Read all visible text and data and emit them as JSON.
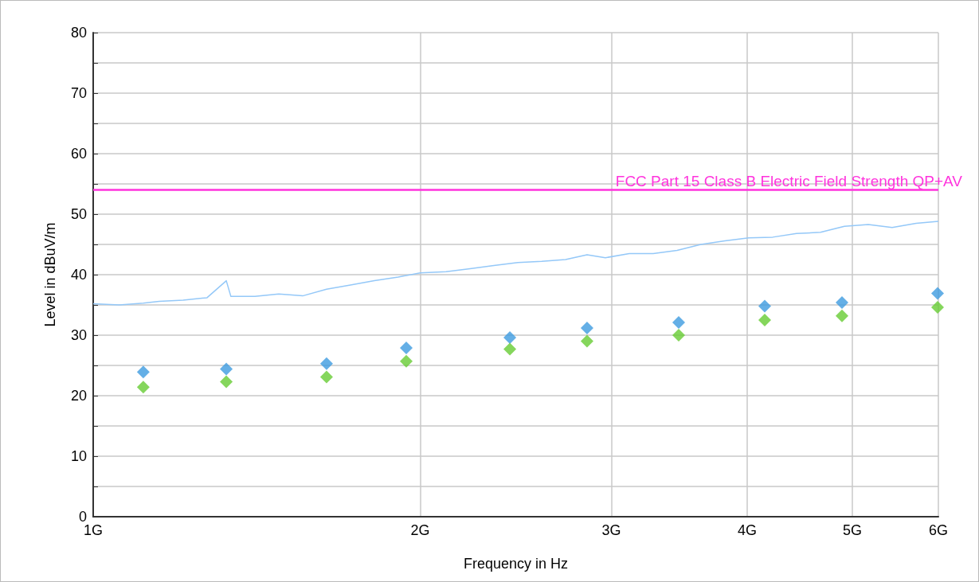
{
  "chart_data": {
    "type": "line",
    "xlabel": "Frequency in Hz",
    "ylabel": "Level in dBuV/m",
    "log": "x",
    "grid": true,
    "legend": false,
    "xlim": [
      1,
      6
    ],
    "xticks": [
      {
        "value": 1,
        "label": "1G"
      },
      {
        "value": 2,
        "label": "2G"
      },
      {
        "value": 3,
        "label": "3G"
      },
      {
        "value": 4,
        "label": "4G"
      },
      {
        "value": 5,
        "label": "5G"
      },
      {
        "value": 6,
        "label": "6G"
      }
    ],
    "ylim": [
      0,
      80
    ],
    "yticks": [
      0,
      {
        "value": 5,
        "label": null
      },
      10,
      {
        "value": 15,
        "label": null
      },
      20,
      {
        "value": 25,
        "label": null
      },
      30,
      {
        "value": 35,
        "label": null
      },
      40,
      {
        "value": 45,
        "label": null
      },
      50,
      {
        "value": 55,
        "label": null
      },
      60,
      {
        "value": 65,
        "label": null
      },
      70,
      {
        "value": 75,
        "label": null
      },
      80
    ],
    "ref_lines": [
      {
        "axis": "y",
        "value": 54,
        "label": "FCC Part 15 Class B Electric Field Strength QP+AV",
        "color": "#ff33dd"
      }
    ],
    "series": [
      {
        "marker": "none",
        "color": "#94c8f8",
        "x": [
          1.0,
          1.057,
          1.112,
          1.15,
          1.21,
          1.273,
          1.326,
          1.339,
          1.409,
          1.482,
          1.559,
          1.64,
          1.725,
          1.815,
          1.909,
          2.0,
          2.113,
          2.223,
          2.338,
          2.46,
          2.588,
          2.722,
          2.849,
          2.962,
          3.116,
          3.278,
          3.448,
          3.627,
          3.816,
          4.014,
          4.223,
          4.442,
          4.673,
          4.916,
          5.172,
          5.44,
          5.723,
          6.0
        ],
        "values": [
          35.2,
          35.0,
          35.3,
          35.6,
          35.8,
          36.2,
          39.0,
          36.4,
          36.4,
          36.8,
          36.5,
          37.6,
          38.3,
          39.0,
          39.6,
          40.3,
          40.5,
          41.0,
          41.5,
          42.0,
          42.2,
          42.5,
          43.3,
          42.8,
          43.5,
          43.5,
          44.0,
          45.0,
          45.6,
          46.1,
          46.2,
          46.8,
          47.0,
          48.0,
          48.3,
          47.8,
          48.5,
          48.8
        ]
      },
      {
        "type": "scatter",
        "marker": "diamond",
        "color": "#3d9be0",
        "x": [
          1.112,
          1.326,
          1.64,
          1.942,
          2.419,
          2.849,
          3.46,
          4.152,
          4.891,
          5.99
        ],
        "values": [
          23.9,
          24.4,
          25.3,
          27.9,
          29.6,
          31.2,
          32.1,
          34.8,
          35.4,
          36.9
        ]
      },
      {
        "type": "scatter",
        "marker": "diamond",
        "color": "#66cc33",
        "x": [
          1.112,
          1.326,
          1.64,
          1.942,
          2.419,
          2.849,
          3.46,
          4.152,
          4.891,
          5.99
        ],
        "values": [
          21.4,
          22.3,
          23.1,
          25.7,
          27.7,
          29.0,
          30.0,
          32.5,
          33.2,
          34.6
        ]
      }
    ]
  }
}
